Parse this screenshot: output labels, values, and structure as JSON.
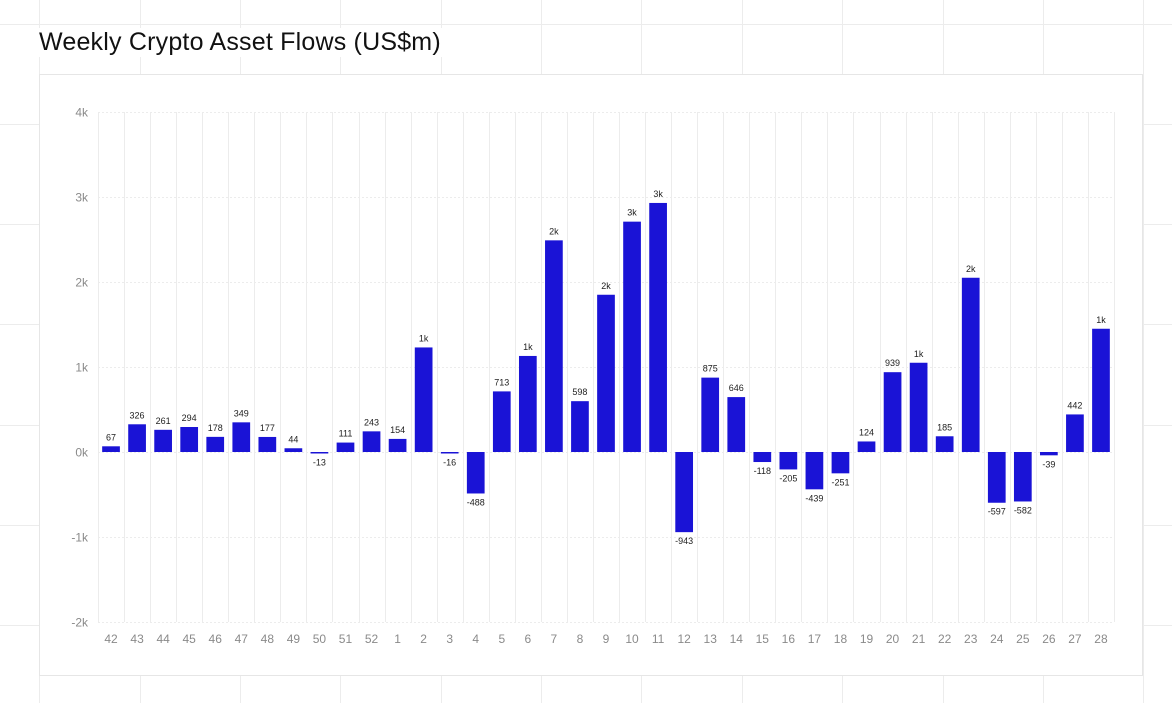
{
  "title": "Weekly Crypto Asset Flows (US$m)",
  "colors": {
    "bar": "#1a13d6",
    "grid": "#ececec",
    "axis_text": "#8a8a8a",
    "label_text": "#222222"
  },
  "chart_data": {
    "type": "bar",
    "title": "Weekly Crypto Asset Flows (US$m)",
    "xlabel": "",
    "ylabel": "",
    "ylim": [
      -2000,
      4000
    ],
    "yticks": [
      -2000,
      -1000,
      0,
      1000,
      2000,
      3000,
      4000
    ],
    "ytick_labels": [
      "-2k",
      "-1k",
      "0k",
      "1k",
      "2k",
      "3k",
      "4k"
    ],
    "grid": true,
    "categories": [
      "42",
      "43",
      "44",
      "45",
      "46",
      "47",
      "48",
      "49",
      "50",
      "51",
      "52",
      "1",
      "2",
      "3",
      "4",
      "5",
      "6",
      "7",
      "8",
      "9",
      "10",
      "11",
      "12",
      "13",
      "14",
      "15",
      "16",
      "17",
      "18",
      "19",
      "20",
      "21",
      "22",
      "23",
      "24",
      "25",
      "26",
      "27",
      "28"
    ],
    "values": [
      67,
      326,
      261,
      294,
      178,
      349,
      177,
      44,
      -13,
      111,
      243,
      154,
      1230,
      -16,
      -488,
      713,
      1130,
      2490,
      598,
      1850,
      2710,
      2930,
      -943,
      875,
      646,
      -118,
      -205,
      -439,
      -251,
      124,
      939,
      1050,
      185,
      2050,
      -597,
      -582,
      -39,
      442,
      1450
    ],
    "data_labels": [
      "67",
      "326",
      "261",
      "294",
      "178",
      "349",
      "177",
      "44",
      "-13",
      "111",
      "243",
      "154",
      "1k",
      "-16",
      "-488",
      "713",
      "1k",
      "2k",
      "598",
      "2k",
      "3k",
      "3k",
      "-943",
      "875",
      "646",
      "-118",
      "-205",
      "-439",
      "-251",
      "124",
      "939",
      "1k",
      "185",
      "2k",
      "-597",
      "-582",
      "-39",
      "442",
      "1k"
    ]
  }
}
